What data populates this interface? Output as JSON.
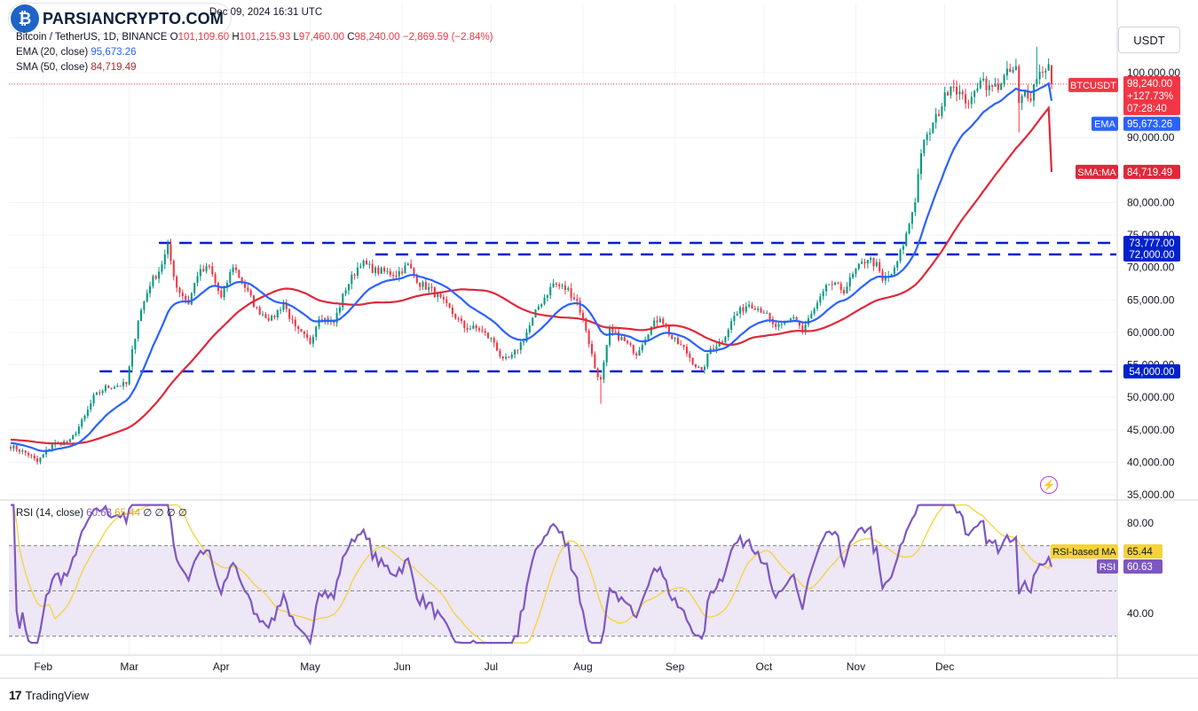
{
  "watermark": {
    "logo_glyph": "₿",
    "text": "PARSIANCRYPTO.COM"
  },
  "header": {
    "date": "Dec 09, 2024 16:31 UTC",
    "symbol": "Bitcoin / TetherUS, 1D, BINANCE",
    "o_label": "O",
    "o_value": "101,109.60",
    "h_label": "H",
    "h_value": "101,215.93",
    "l_label": "L",
    "l_value": "97,460.00",
    "c_label": "C",
    "c_value": "98,240.00",
    "change": "−2,869.59 (−2.84%)",
    "ema_label": "EMA (20, close)",
    "ema_value": "95,673.26",
    "sma_label": "SMA (50, close)",
    "sma_value": "84,719.49"
  },
  "unit_button": "USDT",
  "rsi_legend": {
    "label": "RSI (14, close)",
    "rsi": "60.63",
    "ma": "65.44",
    "extras": "∅ ∅ ∅ ∅"
  },
  "footer": {
    "brand": "TradingView",
    "brand_mark": "17"
  },
  "colors": {
    "up": "#089981",
    "down": "#f23645",
    "ema": "#2962ff",
    "sma": "#e0283a",
    "level": "#0022cc",
    "rsi": "#7e57c2",
    "rsi_ma": "#f5d33a",
    "rsi_band": "#ede7f6"
  },
  "chart_data": [
    {
      "type": "candlestick",
      "title": "Bitcoin / TetherUS, 1D, BINANCE",
      "ylabel": "USDT",
      "ylim": [
        35000,
        105000
      ],
      "price_ticks": [
        {
          "v": 100000,
          "label": "100,000.00"
        },
        {
          "v": 90000,
          "label": "90,000.00"
        },
        {
          "v": 80000,
          "label": "80,000.00"
        },
        {
          "v": 75000,
          "label": "75,000.00"
        },
        {
          "v": 70000,
          "label": "70,000.00"
        },
        {
          "v": 65000,
          "label": "65,000.00"
        },
        {
          "v": 60000,
          "label": "60,000.00"
        },
        {
          "v": 55000,
          "label": "55,000.00"
        },
        {
          "v": 50000,
          "label": "50,000.00"
        },
        {
          "v": 45000,
          "label": "45,000.00"
        },
        {
          "v": 40000,
          "label": "40,000.00"
        },
        {
          "v": 35000,
          "label": "35,000.00"
        }
      ],
      "x_labels": [
        {
          "day": 11,
          "label": "Feb"
        },
        {
          "day": 40,
          "label": "Mar"
        },
        {
          "day": 71,
          "label": "Apr"
        },
        {
          "day": 101,
          "label": "May"
        },
        {
          "day": 132,
          "label": "Jun"
        },
        {
          "day": 162,
          "label": "Jul"
        },
        {
          "day": 193,
          "label": "Aug"
        },
        {
          "day": 224,
          "label": "Sep"
        },
        {
          "day": 254,
          "label": "Oct"
        },
        {
          "day": 285,
          "label": "Nov"
        },
        {
          "day": 315,
          "label": "Dec"
        }
      ],
      "total_days": 323,
      "price_path": [
        [
          0,
          42500
        ],
        [
          6,
          41200
        ],
        [
          9,
          40000
        ],
        [
          14,
          42800
        ],
        [
          20,
          43200
        ],
        [
          25,
          47000
        ],
        [
          28,
          50000
        ],
        [
          32,
          51500
        ],
        [
          35,
          51800
        ],
        [
          39,
          52000
        ],
        [
          43,
          62000
        ],
        [
          47,
          67500
        ],
        [
          50,
          69500
        ],
        [
          53,
          73000
        ],
        [
          56,
          67000
        ],
        [
          60,
          64500
        ],
        [
          63,
          69000
        ],
        [
          67,
          70000
        ],
        [
          71,
          65200
        ],
        [
          75,
          70300
        ],
        [
          79,
          67000
        ],
        [
          83,
          63500
        ],
        [
          88,
          62000
        ],
        [
          92,
          64500
        ],
        [
          96,
          60500
        ],
        [
          101,
          58500
        ],
        [
          104,
          62500
        ],
        [
          109,
          61500
        ],
        [
          113,
          66800
        ],
        [
          118,
          70800
        ],
        [
          123,
          69500
        ],
        [
          130,
          69000
        ],
        [
          134,
          70300
        ],
        [
          138,
          67500
        ],
        [
          142,
          66500
        ],
        [
          148,
          63500
        ],
        [
          153,
          60800
        ],
        [
          158,
          60500
        ],
        [
          163,
          58500
        ],
        [
          166,
          55500
        ],
        [
          169,
          56200
        ],
        [
          173,
          59000
        ],
        [
          178,
          64000
        ],
        [
          183,
          67500
        ],
        [
          188,
          66500
        ],
        [
          191,
          64800
        ],
        [
          194,
          60500
        ],
        [
          197,
          54500
        ],
        [
          199,
          52500
        ],
        [
          202,
          60200
        ],
        [
          206,
          59000
        ],
        [
          211,
          56800
        ],
        [
          215,
          60200
        ],
        [
          219,
          62500
        ],
        [
          223,
          59000
        ],
        [
          227,
          57500
        ],
        [
          230,
          55500
        ],
        [
          233,
          53800
        ],
        [
          236,
          57500
        ],
        [
          240,
          58800
        ],
        [
          244,
          62500
        ],
        [
          249,
          64500
        ],
        [
          254,
          63300
        ],
        [
          257,
          61000
        ],
        [
          260,
          60800
        ],
        [
          264,
          62500
        ],
        [
          267,
          60300
        ],
        [
          271,
          63500
        ],
        [
          276,
          67500
        ],
        [
          281,
          66500
        ],
        [
          285,
          69500
        ],
        [
          289,
          71500
        ],
        [
          292,
          70300
        ],
        [
          294,
          67800
        ],
        [
          298,
          69500
        ],
        [
          302,
          75000
        ],
        [
          305,
          80500
        ],
        [
          307,
          88000
        ],
        [
          310,
          91000
        ],
        [
          313,
          94000
        ],
        [
          317,
          98500
        ],
        [
          319,
          97500
        ],
        [
          321,
          96000
        ],
        [
          324,
          95500
        ],
        [
          327,
          99500
        ],
        [
          330,
          97500
        ],
        [
          333,
          98000
        ],
        [
          336,
          99800
        ],
        [
          339,
          100500
        ],
        [
          340,
          95000
        ],
        [
          342,
          97000
        ],
        [
          344,
          96500
        ],
        [
          346,
          99500
        ],
        [
          348,
          100500
        ],
        [
          350,
          101100
        ],
        [
          351,
          98240
        ]
      ],
      "last_close": 98240,
      "ema_period": 20,
      "ema_value": 95673.26,
      "sma_period": 50,
      "sma_value": 84719.49,
      "levels": [
        {
          "value": 73777,
          "label": "73,777.00",
          "from_day": 50
        },
        {
          "value": 72000,
          "label": "72,000.00",
          "from_day": 123
        },
        {
          "value": 54000,
          "label": "54,000.00",
          "from_day": 30
        }
      ],
      "price_tags": [
        {
          "name": "BTCUSDT",
          "value": "98,240.00",
          "change": "+127.73%",
          "countdown": "07:28:40"
        },
        {
          "name": "EMA",
          "value": "95,673.26"
        },
        {
          "name": "SMA:MA",
          "value": "84,719.49"
        }
      ]
    },
    {
      "type": "line",
      "title": "RSI (14, close)",
      "ylim": [
        25,
        92
      ],
      "ticks": [
        {
          "v": 80,
          "label": "80.00"
        },
        {
          "v": 40,
          "label": "40.00"
        }
      ],
      "bands": [
        70,
        50,
        30
      ],
      "rsi_value": 60.63,
      "rsi_ma_value": 65.44,
      "tags": [
        {
          "name": "RSI-based MA",
          "value": "65.44"
        },
        {
          "name": "RSI",
          "value": "60.63"
        }
      ]
    }
  ]
}
